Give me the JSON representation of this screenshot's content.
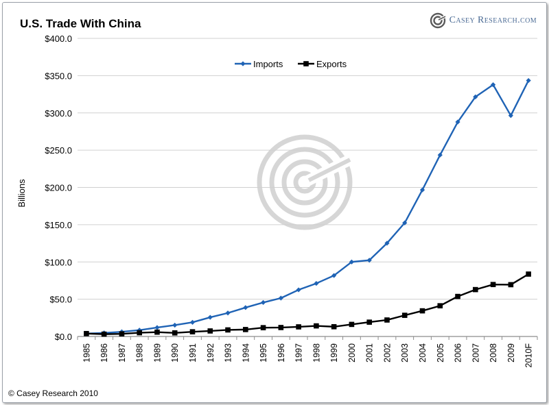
{
  "chart_data": {
    "type": "line",
    "title": "U.S. Trade With China",
    "xlabel": "",
    "ylabel": "Billions",
    "ylim": [
      0,
      400
    ],
    "y_ticks": [
      "$0.0",
      "$50.0",
      "$100.0",
      "$150.0",
      "$200.0",
      "$250.0",
      "$300.0",
      "$350.0",
      "$400.0"
    ],
    "y_tick_values": [
      0,
      50,
      100,
      150,
      200,
      250,
      300,
      350,
      400
    ],
    "grid": true,
    "legend_position": "top-center",
    "categories": [
      "1985",
      "1986",
      "1987",
      "1988",
      "1989",
      "1990",
      "1991",
      "1992",
      "1993",
      "1994",
      "1995",
      "1996",
      "1997",
      "1998",
      "1999",
      "2000",
      "2001",
      "2002",
      "2003",
      "2004",
      "2005",
      "2006",
      "2007",
      "2008",
      "2009",
      "2010F"
    ],
    "series": [
      {
        "name": "Imports",
        "color": "#1f63b5",
        "marker": "diamond",
        "values": [
          3.9,
          4.8,
          6.3,
          8.5,
          12.0,
          15.2,
          19.0,
          25.7,
          31.5,
          38.8,
          45.6,
          51.5,
          62.6,
          71.2,
          81.8,
          100.0,
          102.3,
          125.2,
          152.4,
          196.7,
          243.5,
          287.8,
          321.5,
          337.8,
          296.4,
          343.5
        ]
      },
      {
        "name": "Exports",
        "color": "#000000",
        "marker": "square",
        "values": [
          3.9,
          3.1,
          3.5,
          5.0,
          5.8,
          4.8,
          6.3,
          7.4,
          8.8,
          9.3,
          11.8,
          12.0,
          12.9,
          14.2,
          13.1,
          16.2,
          19.2,
          22.1,
          28.4,
          34.4,
          41.2,
          53.7,
          62.9,
          69.7,
          69.5,
          83.7
        ]
      }
    ]
  },
  "brand": {
    "logo_icon": "casey-spiral-logo",
    "name": "Casey Research.com"
  },
  "footer": {
    "copyright": "© Casey Research 2010"
  },
  "colors": {
    "grid": "#d0d0d0",
    "axis": "#8c8c8c",
    "watermark": "#d6d6d6",
    "brand_text": "#4a6a94"
  }
}
